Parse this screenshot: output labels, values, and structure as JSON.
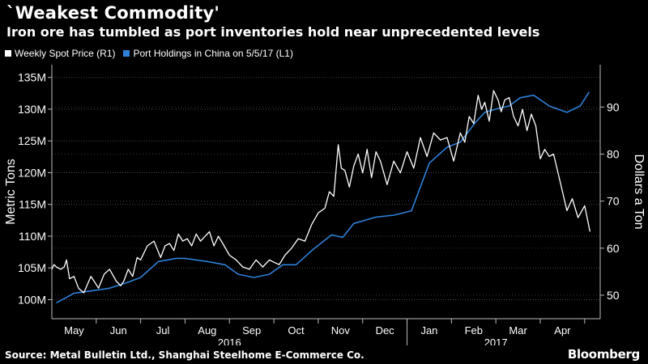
{
  "header": {
    "title": "`Weakest Commodity'",
    "subtitle": "Iron ore has tumbled as port inventories hold near unprecedented levels"
  },
  "legend": [
    {
      "label": "Weekly Spot Price (R1)",
      "color": "#ffffff"
    },
    {
      "label": "Port Holdings in China on 5/5/17 (L1)",
      "color": "#2f80d8"
    }
  ],
  "footer": {
    "source": "Source: Metal Bulletin Ltd., Shanghai Steelhome E-Commerce Co.",
    "brand": "Bloomberg"
  },
  "chart_data": {
    "type": "line",
    "ylabel": "Metric Tons",
    "y2label": "Dollars a Ton",
    "left_axis": {
      "ylim": [
        97000000,
        137000000
      ],
      "ticks": [
        100000000,
        105000000,
        110000000,
        115000000,
        120000000,
        125000000,
        130000000,
        135000000
      ],
      "tick_labels": [
        "100M",
        "105M",
        "110M",
        "115M",
        "120M",
        "125M",
        "130M",
        "135M"
      ]
    },
    "right_axis": {
      "ylim": [
        45,
        99
      ],
      "ticks": [
        50,
        60,
        70,
        80,
        90
      ],
      "tick_labels": [
        "50",
        "60",
        "70",
        "80",
        "90"
      ]
    },
    "x_range": [
      0,
      12.35
    ],
    "months": [
      {
        "label": "May",
        "pos": 0.5
      },
      {
        "label": "Jun",
        "pos": 1.5
      },
      {
        "label": "Jul",
        "pos": 2.5
      },
      {
        "label": "Aug",
        "pos": 3.5
      },
      {
        "label": "Sep",
        "pos": 4.5
      },
      {
        "label": "Oct",
        "pos": 5.5
      },
      {
        "label": "Nov",
        "pos": 6.5
      },
      {
        "label": "Dec",
        "pos": 7.5
      },
      {
        "label": "Jan",
        "pos": 8.5
      },
      {
        "label": "Feb",
        "pos": 9.5
      },
      {
        "label": "Mar",
        "pos": 10.5
      },
      {
        "label": "Apr",
        "pos": 11.5
      }
    ],
    "years": [
      {
        "label": "2016",
        "pos": 4.0
      },
      {
        "label": "2017",
        "pos": 10.0
      }
    ],
    "month_ticks": [
      1,
      2,
      3,
      4,
      5,
      6,
      7,
      8,
      9,
      10,
      11,
      12
    ],
    "year_divider": 8,
    "grid": true,
    "series": [
      {
        "name": "Port Holdings in China on 5/5/17",
        "axis": "left",
        "color": "#2f80d8",
        "x": [
          0.1,
          0.5,
          1.0,
          1.3,
          1.7,
          2.0,
          2.4,
          2.8,
          3.0,
          3.5,
          3.9,
          4.2,
          4.55,
          4.9,
          5.2,
          5.5,
          5.9,
          6.3,
          6.55,
          6.8,
          7.3,
          7.7,
          8.1,
          8.5,
          8.9,
          9.2,
          9.55,
          9.75,
          10.0,
          10.3,
          10.55,
          10.85,
          11.2,
          11.6,
          11.9,
          12.1
        ],
        "y": [
          99.5,
          101.0,
          101.5,
          101.8,
          102.7,
          103.5,
          106.0,
          106.5,
          106.5,
          106.0,
          105.5,
          104.0,
          103.5,
          104.0,
          105.5,
          105.5,
          108.0,
          110.2,
          109.8,
          112.0,
          113.0,
          113.3,
          114.0,
          121.5,
          124.0,
          124.8,
          128.0,
          129.5,
          130.0,
          130.5,
          131.8,
          132.2,
          130.5,
          129.5,
          130.5,
          132.7
        ]
      },
      {
        "name": "Weekly Spot Price",
        "axis": "right",
        "color": "#ffffff",
        "x": [
          0.0,
          0.05,
          0.1,
          0.2,
          0.28,
          0.33,
          0.4,
          0.5,
          0.6,
          0.72,
          0.88,
          0.95,
          1.05,
          1.18,
          1.3,
          1.45,
          1.55,
          1.62,
          1.72,
          1.82,
          1.92,
          2.0,
          2.15,
          2.3,
          2.45,
          2.55,
          2.65,
          2.75,
          2.85,
          2.95,
          3.05,
          3.15,
          3.25,
          3.35,
          3.45,
          3.55,
          3.65,
          3.75,
          3.85,
          4.0,
          4.15,
          4.3,
          4.45,
          4.6,
          4.75,
          4.9,
          5.0,
          5.12,
          5.25,
          5.4,
          5.55,
          5.7,
          5.85,
          6.0,
          6.15,
          6.25,
          6.35,
          6.45,
          6.52,
          6.6,
          6.7,
          6.8,
          6.9,
          7.0,
          7.1,
          7.2,
          7.3,
          7.4,
          7.55,
          7.7,
          7.85,
          8.0,
          8.15,
          8.3,
          8.45,
          8.6,
          8.75,
          8.9,
          9.05,
          9.2,
          9.3,
          9.4,
          9.5,
          9.6,
          9.68,
          9.75,
          9.85,
          9.95,
          10.05,
          10.12,
          10.2,
          10.3,
          10.4,
          10.5,
          10.6,
          10.7,
          10.8,
          10.9,
          11.0,
          11.1,
          11.2,
          11.3,
          11.45,
          11.6,
          11.72,
          11.85,
          12.0,
          12.12
        ],
        "y": [
          55.5,
          56.5,
          56.0,
          55.5,
          56.0,
          57.5,
          53.5,
          54.0,
          51.5,
          50.5,
          54.0,
          53.0,
          51.5,
          54.5,
          55.5,
          53.0,
          52.0,
          53.0,
          55.5,
          54.0,
          58.0,
          57.5,
          60.5,
          61.5,
          58.0,
          60.5,
          61.0,
          59.5,
          63.0,
          61.5,
          62.0,
          60.5,
          63.0,
          61.5,
          62.5,
          63.5,
          60.5,
          62.5,
          61.0,
          58.5,
          57.5,
          56.0,
          55.5,
          57.5,
          56.0,
          57.5,
          57.0,
          56.5,
          58.5,
          60.0,
          62.0,
          61.5,
          65.0,
          67.5,
          68.5,
          72.0,
          71.0,
          82.0,
          77.0,
          76.5,
          73.0,
          77.5,
          80.0,
          76.0,
          81.0,
          75.0,
          80.5,
          78.5,
          73.5,
          78.5,
          76.0,
          80.5,
          77.0,
          83.5,
          79.5,
          84.5,
          83.0,
          83.5,
          78.5,
          84.5,
          82.5,
          88.0,
          86.5,
          92.5,
          89.5,
          91.0,
          87.0,
          93.5,
          91.5,
          89.0,
          91.5,
          92.0,
          88.0,
          86.0,
          89.5,
          85.0,
          88.5,
          86.0,
          79.0,
          81.0,
          79.5,
          80.0,
          74.0,
          68.0,
          70.5,
          66.5,
          69.0,
          63.5
        ]
      }
    ]
  }
}
